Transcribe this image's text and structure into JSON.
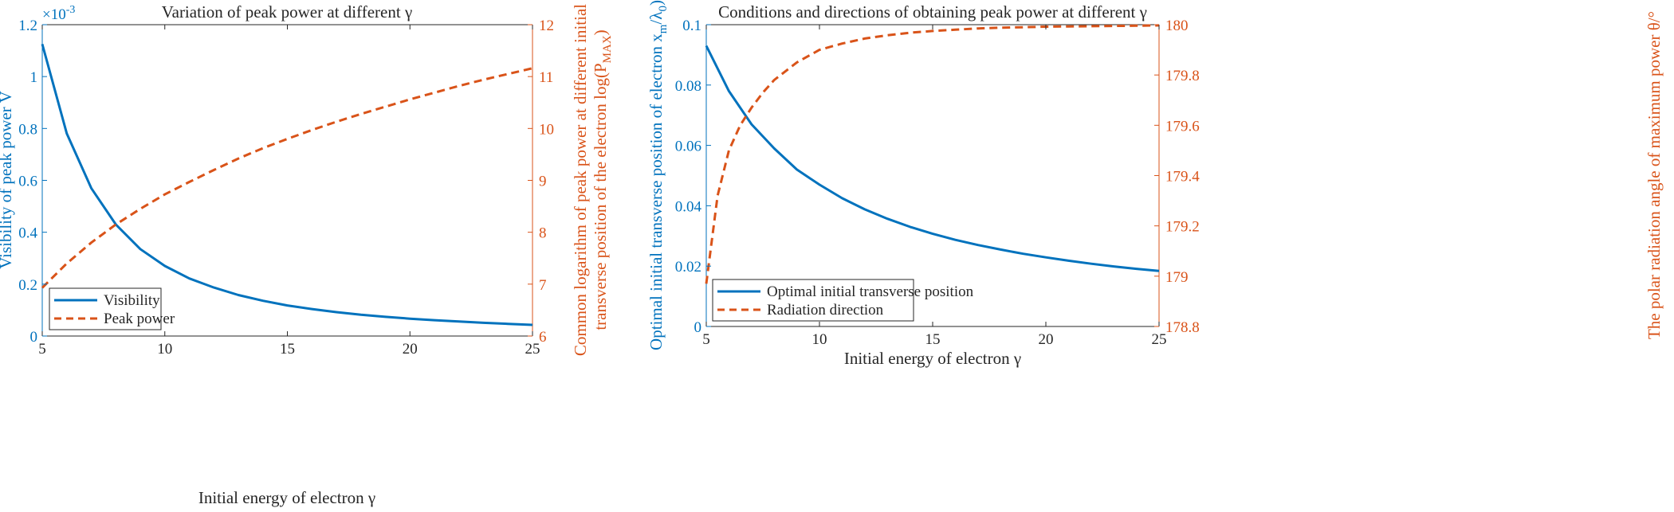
{
  "colors": {
    "left": "#0072BD",
    "right": "#D95319",
    "axis": "#262626"
  },
  "chart_data": [
    {
      "type": "line",
      "title": "Variation of peak power at different γ",
      "xlabel": "Initial energy of electron γ",
      "ylabel_left": "Visibility of peak power V",
      "ylabel_right_line1": "Common logarithm of peak power at different initial",
      "ylabel_right_line2": "transverse position of the electron log(P",
      "ylabel_right_sub": "MAX",
      "ylabel_right_close": ")",
      "xlim": [
        5,
        25
      ],
      "xticks": [
        5,
        10,
        15,
        20,
        25
      ],
      "ylim_left": [
        0,
        0.0012
      ],
      "yticks_left": [
        "0",
        "0.2",
        "0.4",
        "0.6",
        "0.8",
        "1",
        "1.2"
      ],
      "exponent_label": "×10",
      "exponent_power": "-3",
      "ylim_right": [
        6,
        12
      ],
      "yticks_right": [
        "6",
        "7",
        "8",
        "9",
        "10",
        "11",
        "12"
      ],
      "legend_position": "bottom-left",
      "series": [
        {
          "name": "Visibility",
          "axis": "left",
          "style": "solid",
          "x": [
            5,
            6,
            7,
            8,
            9,
            10,
            11,
            12,
            13,
            14,
            15,
            16,
            17,
            18,
            19,
            20,
            21,
            22,
            23,
            24,
            25
          ],
          "values": [
            0.001125,
            0.00078,
            0.00057,
            0.00043,
            0.000335,
            0.00027,
            0.000222,
            0.000187,
            0.000158,
            0.000136,
            0.000118,
            0.000104,
            9.2e-05,
            8.2e-05,
            7.4e-05,
            6.7e-05,
            6.1e-05,
            5.6e-05,
            5.1e-05,
            4.7e-05,
            4.3e-05
          ]
        },
        {
          "name": "Peak power",
          "axis": "right",
          "style": "dashed",
          "x": [
            5,
            6,
            7,
            8,
            9,
            10,
            11,
            12,
            13,
            14,
            15,
            16,
            17,
            18,
            19,
            20,
            21,
            22,
            23,
            24,
            25
          ],
          "values": [
            6.93,
            7.4,
            7.8,
            8.15,
            8.45,
            8.73,
            8.97,
            9.2,
            9.42,
            9.62,
            9.8,
            9.97,
            10.13,
            10.28,
            10.42,
            10.56,
            10.69,
            10.82,
            10.94,
            11.05,
            11.16
          ]
        }
      ]
    },
    {
      "type": "line",
      "title": "Conditions and directions of obtaining peak power at different γ",
      "xlabel": "Initial energy of electron γ",
      "ylabel_left_main": "Optimal initial transverse position of electron x",
      "ylabel_left_sub1": "m",
      "ylabel_left_mid": "/λ",
      "ylabel_left_sub2": "0",
      "ylabel_left_close": ")",
      "ylabel_right": "The polar radiation angle of maximum power θ/°",
      "xlim": [
        5,
        25
      ],
      "xticks": [
        5,
        10,
        15,
        20,
        25
      ],
      "ylim_left": [
        0,
        0.1
      ],
      "yticks_left": [
        "0",
        "0.02",
        "0.04",
        "0.06",
        "0.08",
        "0.1"
      ],
      "ylim_right": [
        178.8,
        180
      ],
      "yticks_right": [
        "178.8",
        "179",
        "179.2",
        "179.4",
        "179.6",
        "179.8",
        "180"
      ],
      "legend_position": "bottom-left",
      "series": [
        {
          "name": "Optimal initial transverse position",
          "axis": "left",
          "style": "solid",
          "x": [
            5,
            6,
            7,
            8,
            9,
            10,
            11,
            12,
            13,
            14,
            15,
            16,
            17,
            18,
            19,
            20,
            21,
            22,
            23,
            24,
            25
          ],
          "values": [
            0.093,
            0.078,
            0.067,
            0.059,
            0.052,
            0.047,
            0.0425,
            0.0388,
            0.0357,
            0.033,
            0.0307,
            0.0287,
            0.027,
            0.0255,
            0.0241,
            0.0229,
            0.0218,
            0.0208,
            0.0199,
            0.0191,
            0.0184
          ]
        },
        {
          "name": "Radiation direction",
          "axis": "right",
          "style": "dashed",
          "x": [
            5,
            5.5,
            6,
            6.5,
            7,
            7.5,
            8,
            9,
            10,
            11,
            12,
            13,
            14,
            15,
            16,
            17,
            18,
            19,
            20,
            21,
            22,
            23,
            24,
            25
          ],
          "values": [
            178.97,
            179.32,
            179.5,
            179.6,
            179.67,
            179.73,
            179.78,
            179.85,
            179.9,
            179.925,
            179.945,
            179.958,
            179.968,
            179.975,
            179.98,
            179.985,
            179.988,
            179.99,
            179.992,
            179.993,
            179.994,
            179.995,
            179.996,
            179.997
          ]
        }
      ]
    }
  ]
}
